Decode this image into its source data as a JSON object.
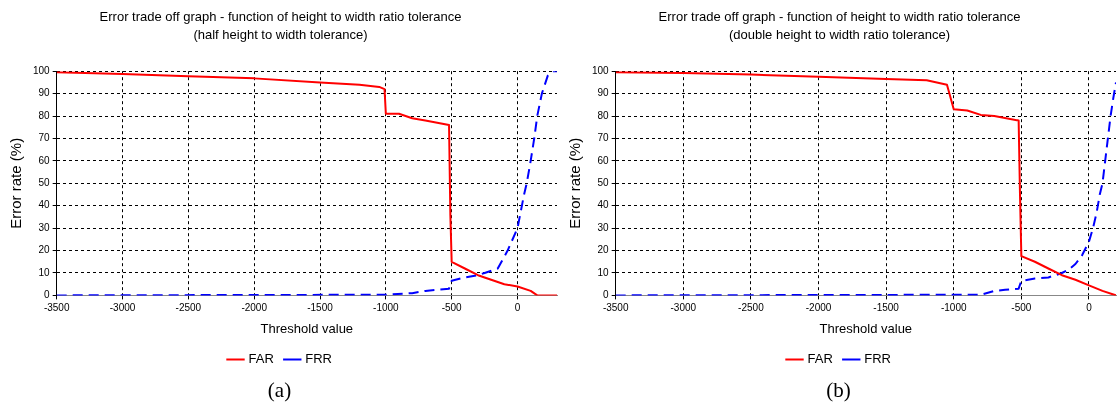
{
  "chart_data": [
    {
      "type": "line",
      "title": "Error trade off graph - function of height to width ratio tolerance",
      "subtitle": "(half height to width tolerance)",
      "xlabel": "Threshold value",
      "ylabel": "Error rate (%)",
      "annotations": [
        "(a)"
      ],
      "xlim": [
        -3500,
        300
      ],
      "xticks": [
        -3500,
        -3000,
        -2500,
        -2000,
        -1500,
        -1000,
        -500,
        0
      ],
      "ylim": [
        0,
        100
      ],
      "yticks": [
        0,
        10,
        20,
        30,
        40,
        50,
        60,
        70,
        80,
        90,
        100
      ],
      "grid": true,
      "legend": "bottom",
      "marker": "none",
      "series": [
        {
          "name": "FAR",
          "color": "#ff0000",
          "line_style": "solid",
          "x": [
            -3500,
            -3000,
            -2500,
            -2000,
            -1500,
            -1200,
            -1050,
            -1010,
            -1000,
            -900,
            -800,
            -700,
            -520,
            -510,
            -500,
            -400,
            -300,
            -200,
            -100,
            0,
            100,
            150,
            300
          ],
          "values": [
            99.5,
            98.8,
            97.8,
            96.8,
            95,
            94,
            93,
            92,
            81,
            81,
            79,
            78,
            76,
            36,
            15,
            12,
            9,
            7,
            5,
            4,
            2,
            0,
            0
          ]
        },
        {
          "name": "FRR",
          "color": "#0000ff",
          "line_style": "dashed",
          "x": [
            -3500,
            -1000,
            -800,
            -700,
            -520,
            -500,
            -400,
            -300,
            -250,
            -150,
            -75,
            0,
            50,
            70,
            100,
            127,
            150,
            185,
            230,
            270,
            300
          ],
          "values": [
            0,
            0.3,
            1,
            2,
            3,
            6.5,
            8,
            9,
            10,
            12,
            20,
            30,
            45,
            50,
            60,
            70,
            80,
            90,
            98,
            100,
            100
          ]
        }
      ]
    },
    {
      "type": "line",
      "title": "Error trade off graph - function of height to width ratio tolerance",
      "subtitle": "(double height to width ratio tolerance)",
      "xlabel": "Threshold value",
      "ylabel": "Error rate (%)",
      "annotations": [
        "(b)"
      ],
      "xlim": [
        -3500,
        200
      ],
      "xticks": [
        -3500,
        -3000,
        -2500,
        -2000,
        -1500,
        -1000,
        -500,
        0
      ],
      "ylim": [
        0,
        100
      ],
      "yticks": [
        0,
        10,
        20,
        30,
        40,
        50,
        60,
        70,
        80,
        90,
        100
      ],
      "grid": true,
      "legend": "bottom",
      "marker": "none",
      "series": [
        {
          "name": "FAR",
          "color": "#ff0000",
          "line_style": "solid",
          "x": [
            -3500,
            -3000,
            -2500,
            -2000,
            -1500,
            -1200,
            -1050,
            -1000,
            -900,
            -800,
            -700,
            -520,
            -510,
            -500,
            -400,
            -300,
            -200,
            -100,
            0,
            100,
            200
          ],
          "values": [
            99.5,
            99.2,
            98.5,
            97.5,
            96.5,
            96,
            94,
            83,
            82.5,
            80.5,
            80,
            78,
            45,
            17.5,
            15,
            12,
            9,
            7,
            4.5,
            2,
            0
          ]
        },
        {
          "name": "FRR",
          "color": "#0000ff",
          "line_style": "dashed",
          "x": [
            -3500,
            -800,
            -700,
            -620,
            -520,
            -500,
            -400,
            -300,
            -200,
            -150,
            -100,
            -50,
            0,
            30,
            57,
            80,
            100,
            120,
            140,
            160,
            180,
            200
          ],
          "values": [
            0,
            0.3,
            2,
            2.5,
            3,
            6.5,
            7.5,
            8,
            10,
            11.5,
            14,
            18,
            24,
            30,
            37,
            45,
            50,
            60,
            70,
            80,
            88,
            95
          ]
        }
      ]
    }
  ]
}
